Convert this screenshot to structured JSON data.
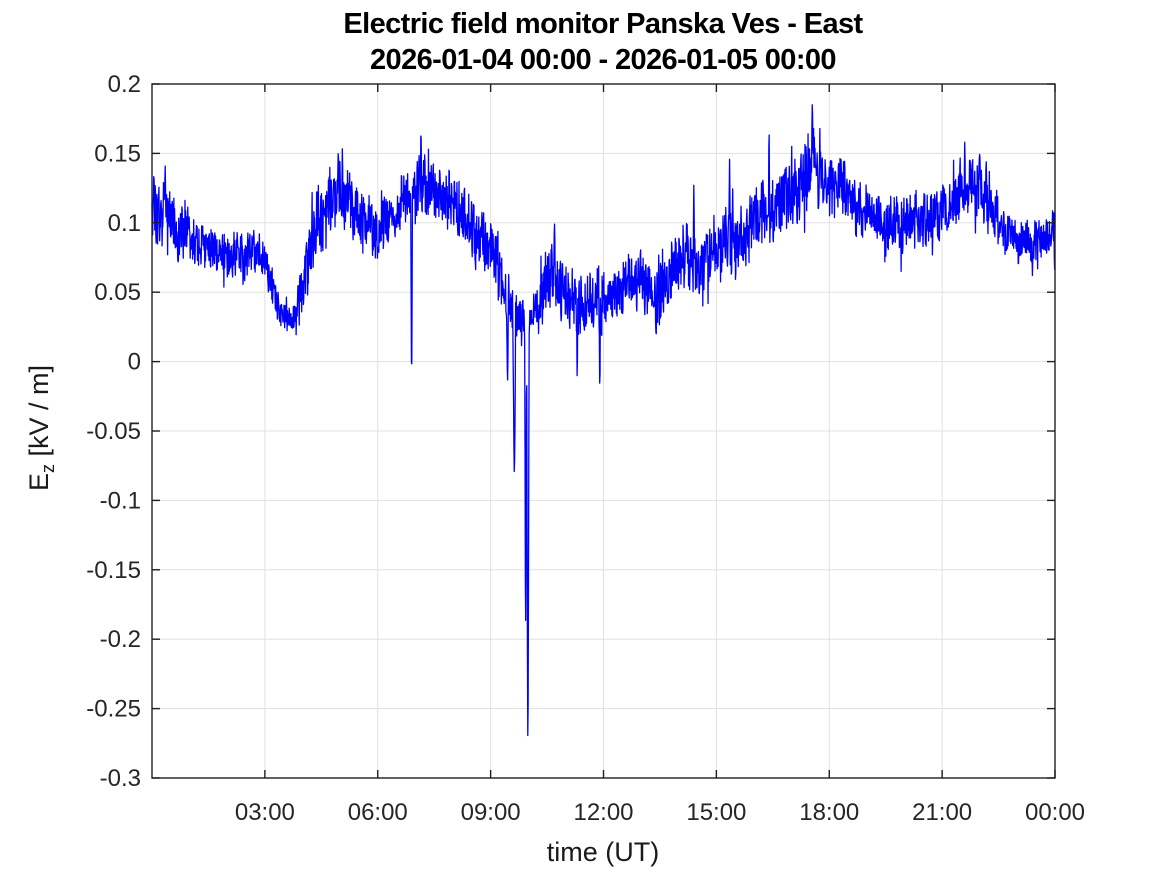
{
  "chart_data": {
    "type": "line",
    "title": "Electric field monitor Panska Ves - East",
    "subtitle": "2026-01-04 00:00 - 2026-01-05 00:00",
    "xlabel": "time (UT)",
    "ylabel": {
      "main": "E",
      "sub": "z",
      "units": " [kV / m]"
    },
    "grid": true,
    "legend": "none",
    "line_color": "#0000ff",
    "axis_color": "#1f1f1f",
    "tick_label_color": "#262626",
    "grid_color": "#e0e0e0",
    "background_color": "#ffffff",
    "xlim_hours": [
      0,
      24
    ],
    "ylim": [
      -0.3,
      0.2
    ],
    "xticks_hours": [
      3,
      6,
      9,
      12,
      15,
      18,
      21,
      24
    ],
    "xtick_labels": [
      "03:00",
      "06:00",
      "09:00",
      "12:00",
      "15:00",
      "18:00",
      "21:00",
      "00:00"
    ],
    "yticks": [
      0.2,
      0.15,
      0.1,
      0.05,
      0,
      -0.05,
      -0.1,
      -0.15,
      -0.2,
      -0.25,
      -0.3
    ],
    "ytick_labels": [
      "0.2",
      "0.15",
      "0.1",
      "0.05",
      "0",
      "-0.05",
      "-0.1",
      "-0.15",
      "-0.2",
      "-0.25",
      "-0.3"
    ],
    "series": [
      {
        "name": "Ez",
        "description": "Noisy 1-day electric-field trace; envelope points are [hours, center_kV_per_m, noise_halfwidth]; spikes are [hours, peak_value, width_hours]",
        "envelope": [
          [
            0.0,
            0.105,
            0.022
          ],
          [
            0.4,
            0.1,
            0.028
          ],
          [
            0.8,
            0.092,
            0.022
          ],
          [
            1.2,
            0.085,
            0.02
          ],
          [
            1.7,
            0.077,
            0.018
          ],
          [
            2.1,
            0.073,
            0.018
          ],
          [
            2.5,
            0.076,
            0.018
          ],
          [
            2.85,
            0.082,
            0.016
          ],
          [
            3.1,
            0.06,
            0.02
          ],
          [
            3.35,
            0.035,
            0.013
          ],
          [
            3.7,
            0.031,
            0.013
          ],
          [
            3.95,
            0.048,
            0.022
          ],
          [
            4.25,
            0.085,
            0.028
          ],
          [
            4.65,
            0.11,
            0.03
          ],
          [
            5.0,
            0.122,
            0.026
          ],
          [
            5.35,
            0.11,
            0.024
          ],
          [
            5.7,
            0.1,
            0.022
          ],
          [
            6.0,
            0.092,
            0.022
          ],
          [
            6.35,
            0.103,
            0.02
          ],
          [
            6.7,
            0.112,
            0.02
          ],
          [
            7.05,
            0.128,
            0.026
          ],
          [
            7.35,
            0.128,
            0.024
          ],
          [
            7.7,
            0.122,
            0.024
          ],
          [
            8.1,
            0.112,
            0.024
          ],
          [
            8.5,
            0.098,
            0.026
          ],
          [
            8.9,
            0.085,
            0.025
          ],
          [
            9.2,
            0.065,
            0.028
          ],
          [
            9.55,
            0.038,
            0.022
          ],
          [
            9.9,
            0.028,
            0.018
          ],
          [
            10.15,
            0.028,
            0.022
          ],
          [
            10.45,
            0.055,
            0.025
          ],
          [
            10.75,
            0.063,
            0.027
          ],
          [
            11.05,
            0.048,
            0.025
          ],
          [
            11.3,
            0.038,
            0.025
          ],
          [
            11.6,
            0.048,
            0.022
          ],
          [
            11.9,
            0.036,
            0.026
          ],
          [
            12.25,
            0.048,
            0.022
          ],
          [
            12.6,
            0.055,
            0.02
          ],
          [
            13.0,
            0.058,
            0.022
          ],
          [
            13.4,
            0.05,
            0.026
          ],
          [
            13.8,
            0.065,
            0.024
          ],
          [
            14.2,
            0.075,
            0.025
          ],
          [
            14.6,
            0.072,
            0.025
          ],
          [
            14.95,
            0.078,
            0.026
          ],
          [
            15.3,
            0.09,
            0.026
          ],
          [
            15.7,
            0.092,
            0.026
          ],
          [
            16.1,
            0.105,
            0.026
          ],
          [
            16.5,
            0.112,
            0.026
          ],
          [
            16.9,
            0.118,
            0.026
          ],
          [
            17.3,
            0.128,
            0.028
          ],
          [
            17.6,
            0.138,
            0.028
          ],
          [
            17.9,
            0.128,
            0.026
          ],
          [
            18.3,
            0.122,
            0.024
          ],
          [
            18.7,
            0.115,
            0.022
          ],
          [
            19.1,
            0.108,
            0.022
          ],
          [
            19.5,
            0.1,
            0.022
          ],
          [
            19.9,
            0.096,
            0.024
          ],
          [
            20.3,
            0.1,
            0.022
          ],
          [
            20.7,
            0.105,
            0.022
          ],
          [
            21.1,
            0.11,
            0.022
          ],
          [
            21.5,
            0.12,
            0.024
          ],
          [
            21.9,
            0.124,
            0.024
          ],
          [
            22.25,
            0.112,
            0.022
          ],
          [
            22.6,
            0.095,
            0.02
          ],
          [
            23.0,
            0.087,
            0.018
          ],
          [
            23.4,
            0.083,
            0.018
          ],
          [
            23.7,
            0.086,
            0.018
          ],
          [
            24.0,
            0.09,
            0.018
          ]
        ],
        "spikes": [
          [
            0.05,
            0.138,
            0.04
          ],
          [
            0.35,
            0.141,
            0.05
          ],
          [
            4.38,
            0.128,
            0.04
          ],
          [
            4.95,
            0.15,
            0.06
          ],
          [
            6.9,
            -0.012,
            0.05
          ],
          [
            7.15,
            0.164,
            0.05
          ],
          [
            9.45,
            -0.015,
            0.05
          ],
          [
            9.63,
            -0.08,
            0.09
          ],
          [
            9.93,
            -0.19,
            0.06
          ],
          [
            9.99,
            -0.272,
            0.08
          ],
          [
            10.7,
            0.1,
            0.04
          ],
          [
            11.3,
            -0.011,
            0.04
          ],
          [
            11.9,
            -0.016,
            0.04
          ],
          [
            13.4,
            0.018,
            0.04
          ],
          [
            14.4,
            0.127,
            0.04
          ],
          [
            15.35,
            0.146,
            0.04
          ],
          [
            16.4,
            0.166,
            0.04
          ],
          [
            17.55,
            0.186,
            0.05
          ],
          [
            17.75,
            0.168,
            0.04
          ],
          [
            21.6,
            0.158,
            0.04
          ],
          [
            22.0,
            0.15,
            0.04
          ],
          [
            23.4,
            0.062,
            0.04
          ]
        ],
        "extremes": {
          "max": 0.186,
          "max_time": "17:33",
          "min": -0.272,
          "min_time": "09:59"
        }
      }
    ]
  }
}
